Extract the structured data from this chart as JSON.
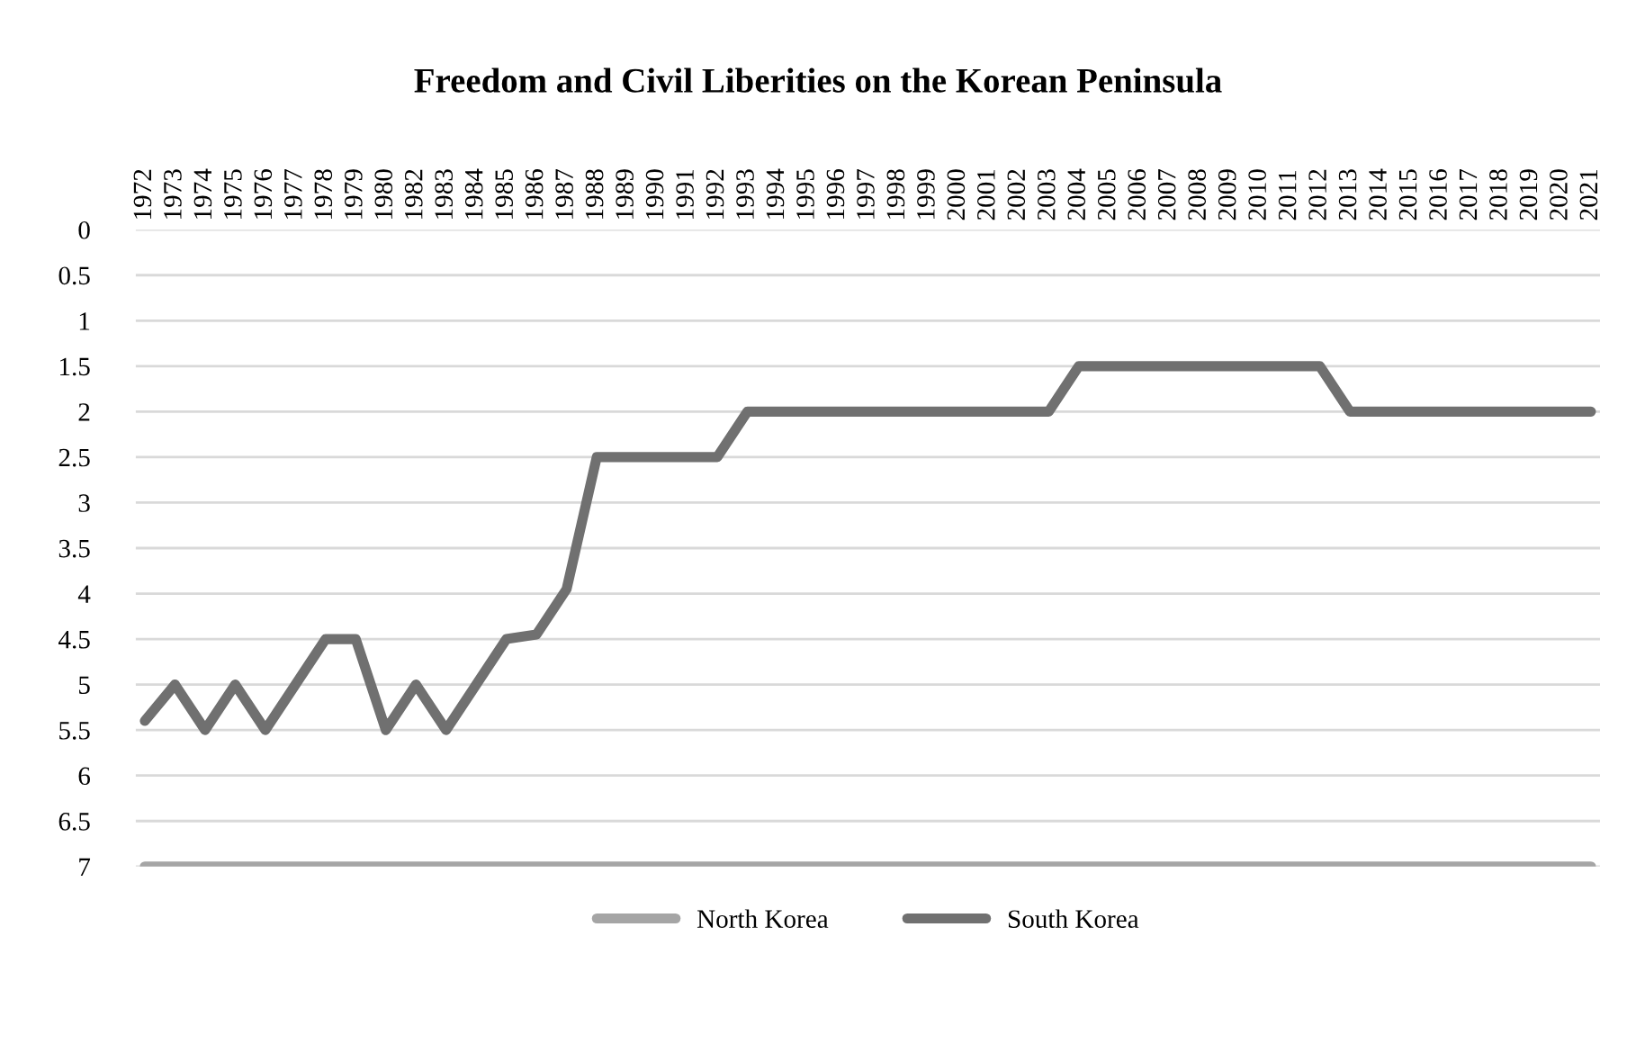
{
  "chart_data": {
    "type": "line",
    "title": "Freedom and Civil Liberities on the Korean Peninsula",
    "categories": [
      "1972",
      "1973",
      "1974",
      "1975",
      "1976",
      "1977",
      "1978",
      "1979",
      "1980",
      "1982",
      "1983",
      "1984",
      "1985",
      "1986",
      "1987",
      "1988",
      "1989",
      "1990",
      "1991",
      "1992",
      "1993",
      "1994",
      "1995",
      "1996",
      "1997",
      "1998",
      "1999",
      "2000",
      "2001",
      "2002",
      "2003",
      "2004",
      "2005",
      "2006",
      "2007",
      "2008",
      "2009",
      "2010",
      "2011",
      "2012",
      "2013",
      "2014",
      "2015",
      "2016",
      "2017",
      "2018",
      "2019",
      "2020",
      "2021"
    ],
    "series": [
      {
        "name": "North Korea",
        "color": "#a5a5a5",
        "values": [
          7,
          7,
          7,
          7,
          7,
          7,
          7,
          7,
          7,
          7,
          7,
          7,
          7,
          7,
          7,
          7,
          7,
          7,
          7,
          7,
          7,
          7,
          7,
          7,
          7,
          7,
          7,
          7,
          7,
          7,
          7,
          7,
          7,
          7,
          7,
          7,
          7,
          7,
          7,
          7,
          7,
          7,
          7,
          7,
          7,
          7,
          7,
          7,
          7
        ]
      },
      {
        "name": "South Korea",
        "color": "#707070",
        "values": [
          5.4,
          5,
          5.5,
          5,
          5.5,
          5,
          4.5,
          4.5,
          5.5,
          5,
          5.5,
          5,
          4.5,
          4.45,
          3.95,
          2.5,
          2.5,
          2.5,
          2.5,
          2.5,
          2,
          2,
          2,
          2,
          2,
          2,
          2,
          2,
          2,
          2,
          2,
          1.5,
          1.5,
          1.5,
          1.5,
          1.5,
          1.5,
          1.5,
          1.5,
          1.5,
          2,
          2,
          2,
          2,
          2,
          2,
          2,
          2,
          2
        ]
      }
    ],
    "ylim": [
      7,
      0
    ],
    "yticks": [
      0,
      0.5,
      1,
      1.5,
      2,
      2.5,
      3,
      3.5,
      4,
      4.5,
      5,
      5.5,
      6,
      6.5,
      7
    ],
    "grid": "y",
    "legend": "bottom",
    "marker": "none",
    "line_style": "solid"
  }
}
